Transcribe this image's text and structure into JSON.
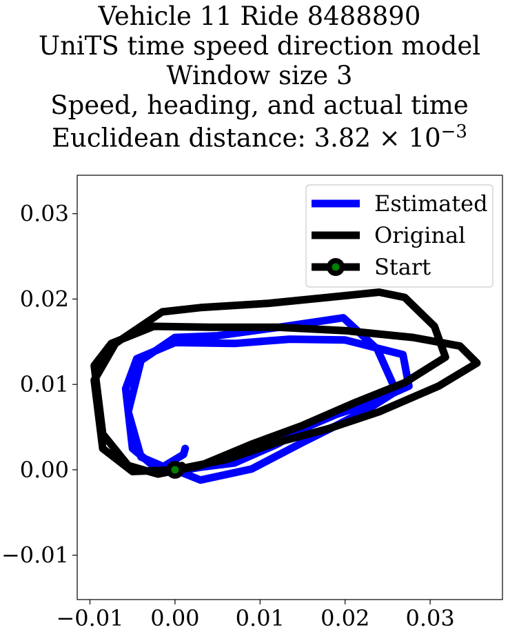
{
  "title_lines": [
    "Vehicle 11 Ride 8488890",
    "UniTS time speed direction model",
    "Window size 3",
    "Speed, heading, and actual time"
  ],
  "title_last_prefix": "Euclidean distance: 3.82 × 10",
  "title_last_exponent": "−3",
  "chart_data": {
    "type": "line",
    "title": "Vehicle 11 Ride 8488890\nUniTS time speed direction model\nWindow size 3\nSpeed, heading, and actual time\nEuclidean distance: 3.82×10^-3",
    "xlabel": "",
    "ylabel": "",
    "xlim": [
      -0.0115,
      0.0385
    ],
    "ylim": [
      -0.0152,
      0.0345
    ],
    "xticks": [
      -0.01,
      0.0,
      0.01,
      0.02,
      0.03
    ],
    "xtick_labels": [
      "−0.01",
      "0.00",
      "0.01",
      "0.02",
      "0.03"
    ],
    "yticks": [
      -0.01,
      0.0,
      0.01,
      0.02,
      0.03
    ],
    "ytick_labels": [
      "−0.01",
      "0.00",
      "0.01",
      "0.02",
      "0.03"
    ],
    "grid": false,
    "legend": "top-right",
    "series": [
      {
        "name": "Estimated",
        "color": "#0000ff",
        "points": [
          [
            0.0,
            0.0
          ],
          [
            0.003,
            -0.0012
          ],
          [
            0.009,
            0.0001
          ],
          [
            0.015,
            0.0032
          ],
          [
            0.019,
            0.0052
          ],
          [
            0.023,
            0.0073
          ],
          [
            0.026,
            0.0092
          ],
          [
            0.0238,
            0.0141
          ],
          [
            0.0198,
            0.0178
          ],
          [
            0.013,
            0.0168
          ],
          [
            0.005,
            0.0157
          ],
          [
            0.0,
            0.0155
          ],
          [
            -0.004,
            0.0128
          ],
          [
            -0.0055,
            0.0068
          ],
          [
            -0.004,
            0.0015
          ],
          [
            0.0,
            -0.0002
          ],
          [
            0.003,
            0.0003
          ],
          [
            0.007,
            0.0008
          ],
          [
            0.012,
            0.003
          ],
          [
            0.0155,
            0.005
          ],
          [
            0.019,
            0.0065
          ],
          [
            0.023,
            0.0078
          ],
          [
            0.0275,
            0.0098
          ],
          [
            0.0268,
            0.0135
          ],
          [
            0.02,
            0.0152
          ],
          [
            0.0135,
            0.0153
          ],
          [
            0.007,
            0.0148
          ],
          [
            0.0,
            0.0149
          ],
          [
            -0.0045,
            0.013
          ],
          [
            -0.0058,
            0.0095
          ],
          [
            -0.005,
            0.0025
          ],
          [
            -0.002,
            0.0
          ],
          [
            0.001,
            0.0018
          ],
          [
            0.0012,
            0.0025
          ]
        ]
      },
      {
        "name": "Original",
        "color": "#000000",
        "points": [
          [
            0.0,
            0.0
          ],
          [
            0.006,
            0.0012
          ],
          [
            0.012,
            0.0032
          ],
          [
            0.018,
            0.0048
          ],
          [
            0.024,
            0.0068
          ],
          [
            0.031,
            0.0098
          ],
          [
            0.0355,
            0.0125
          ],
          [
            0.0335,
            0.0145
          ],
          [
            0.028,
            0.0155
          ],
          [
            0.02,
            0.0163
          ],
          [
            0.012,
            0.0167
          ],
          [
            0.004,
            0.0167
          ],
          [
            -0.0025,
            0.0168
          ],
          [
            -0.0075,
            0.0148
          ],
          [
            -0.0095,
            0.0122
          ],
          [
            -0.0085,
            0.0042
          ],
          [
            -0.0055,
            0.0005
          ],
          [
            -0.002,
            -0.0005
          ],
          [
            0.003,
            0.0005
          ],
          [
            0.009,
            0.003
          ],
          [
            0.015,
            0.0052
          ],
          [
            0.021,
            0.0078
          ],
          [
            0.027,
            0.0102
          ],
          [
            0.0318,
            0.0132
          ],
          [
            0.0305,
            0.0168
          ],
          [
            0.027,
            0.0202
          ],
          [
            0.024,
            0.0208
          ],
          [
            0.018,
            0.0202
          ],
          [
            0.011,
            0.0195
          ],
          [
            0.003,
            0.019
          ],
          [
            -0.0015,
            0.0185
          ],
          [
            -0.007,
            0.0148
          ],
          [
            -0.0095,
            0.0105
          ],
          [
            -0.0085,
            0.0025
          ],
          [
            -0.005,
            -0.0002
          ],
          [
            0.0,
            0.0
          ],
          [
            0.0008,
            0.0005
          ]
        ]
      }
    ],
    "start_marker": {
      "name": "Start",
      "x": 0.0,
      "y": 0.0,
      "fill": "#008000",
      "edge": "#000000"
    }
  }
}
